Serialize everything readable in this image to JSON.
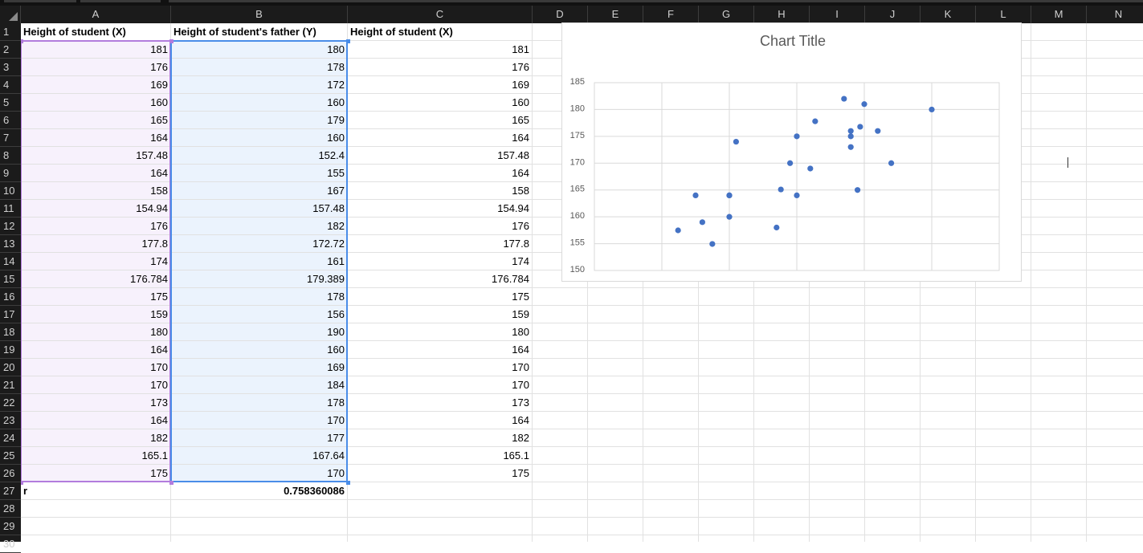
{
  "columns": [
    "A",
    "B",
    "C",
    "D",
    "E",
    "F",
    "G",
    "H",
    "I",
    "J",
    "K",
    "L",
    "M",
    "N"
  ],
  "rows": [
    "1",
    "2",
    "3",
    "4",
    "5",
    "6",
    "7",
    "8",
    "9",
    "10",
    "11",
    "12",
    "13",
    "14",
    "15",
    "16",
    "17",
    "18",
    "19",
    "20",
    "21",
    "22",
    "23",
    "24",
    "25",
    "26",
    "27",
    "28",
    "29",
    "30"
  ],
  "headers": {
    "a1": "Height of student (X)",
    "b1": "Height of student's father (Y)",
    "c1": "Height of student (X)"
  },
  "col_a": [
    "181",
    "176",
    "169",
    "160",
    "165",
    "164",
    "157.48",
    "164",
    "158",
    "154.94",
    "176",
    "177.8",
    "174",
    "176.784",
    "175",
    "159",
    "180",
    "164",
    "170",
    "170",
    "173",
    "164",
    "182",
    "165.1",
    "175"
  ],
  "col_b": [
    "180",
    "178",
    "172",
    "160",
    "179",
    "160",
    "152.4",
    "155",
    "167",
    "157.48",
    "182",
    "172.72",
    "161",
    "179.389",
    "178",
    "156",
    "190",
    "160",
    "169",
    "184",
    "178",
    "170",
    "177",
    "167.64",
    "170"
  ],
  "col_c": [
    "181",
    "176",
    "169",
    "160",
    "165",
    "164",
    "157.48",
    "164",
    "158",
    "154.94",
    "176",
    "177.8",
    "174",
    "176.784",
    "175",
    "159",
    "180",
    "164",
    "170",
    "170",
    "173",
    "164",
    "182",
    "165.1",
    "175"
  ],
  "r_label": "r",
  "r_value": "0.758360086",
  "colors": {
    "header_bg": "#1b1b1b",
    "header_text": "#d0d0d0",
    "sel_a_fill": "#f7f1fc",
    "sel_a_border": "#b27cdd",
    "sel_b_fill": "#ebf3fd",
    "sel_b_border": "#4a8de8",
    "marker": "#4472c4"
  },
  "chart_data": {
    "type": "scatter",
    "title": "Chart Title",
    "xlabel": "",
    "ylabel": "",
    "xlim": [
      140,
      200
    ],
    "ylim": [
      150,
      185
    ],
    "xticks": [
      "140",
      "150",
      "160",
      "170",
      "180",
      "190",
      "200"
    ],
    "yticks": [
      "150",
      "155",
      "160",
      "165",
      "170",
      "175",
      "180",
      "185"
    ],
    "grid": true,
    "legend": "none",
    "x": [
      180,
      178,
      172,
      160,
      179,
      160,
      152.4,
      155,
      167,
      157.48,
      182,
      172.72,
      161,
      179.389,
      178,
      156,
      190,
      160,
      169,
      184,
      178,
      170,
      177,
      167.64,
      170
    ],
    "y": [
      181,
      176,
      169,
      160,
      165,
      164,
      157.48,
      164,
      158,
      154.94,
      176,
      177.8,
      174,
      176.784,
      175,
      159,
      180,
      164,
      170,
      170,
      173,
      164,
      182,
      165.1,
      175
    ]
  }
}
